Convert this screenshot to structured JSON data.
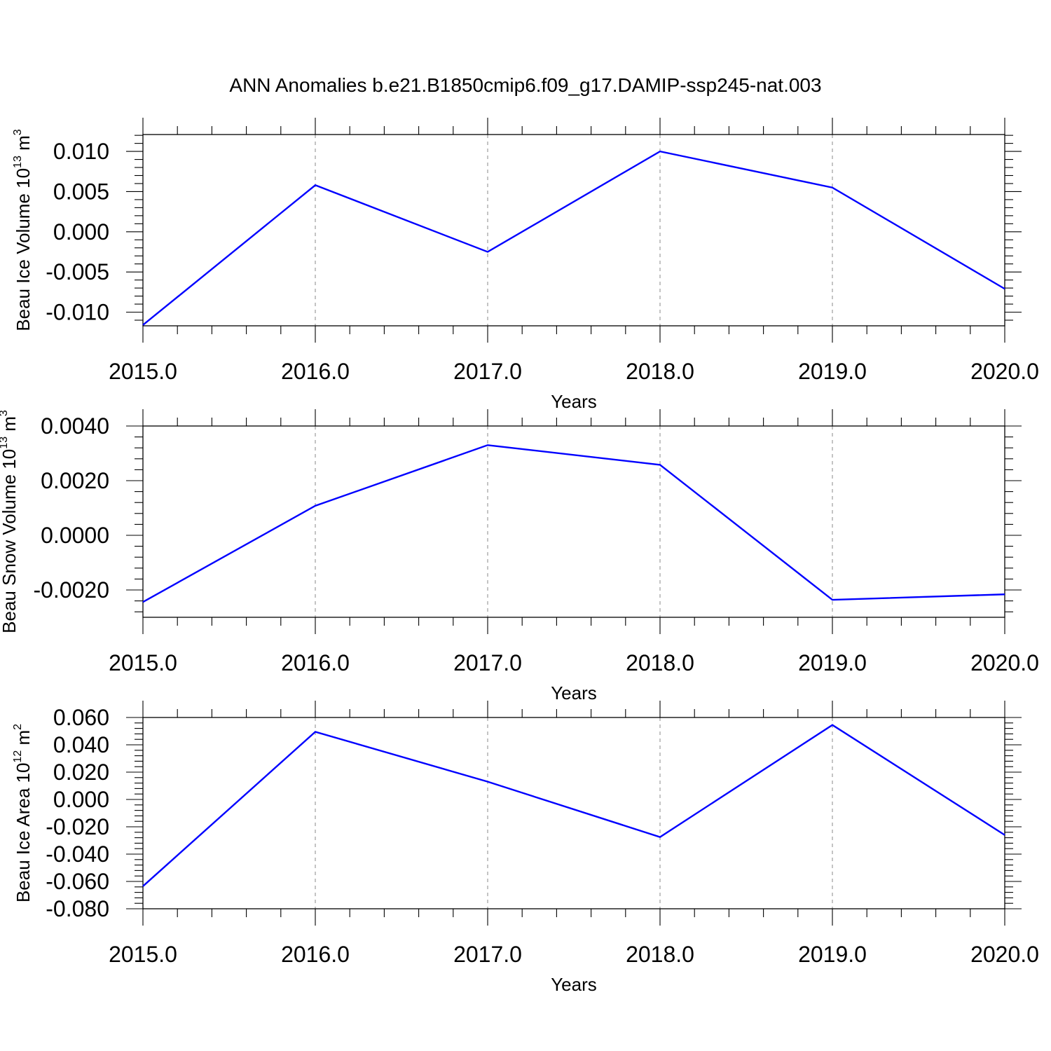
{
  "title": "ANN Anomalies b.e21.B1850cmip6.f09_g17.DAMIP-ssp245-nat.003",
  "chart_data": [
    {
      "type": "line",
      "title": "",
      "xlabel": "Years",
      "ylabel": {
        "prefix": "Beau Ice Volume 10",
        "exp": "13",
        "mid": " m",
        "unit_exp": "3"
      },
      "x": [
        2015,
        2016,
        2017,
        2018,
        2019,
        2020
      ],
      "xlim": [
        2015,
        2020
      ],
      "xticks": [
        "2015.0",
        "2016.0",
        "2017.0",
        "2018.0",
        "2019.0",
        "2020.0"
      ],
      "ylim": [
        -0.0117,
        0.0121
      ],
      "yticks": [
        -0.01,
        -0.005,
        0.0,
        0.005,
        0.01
      ],
      "ytick_labels": [
        "-0.010",
        "-0.005",
        "0.000",
        "0.005",
        "0.010"
      ],
      "grid": "vertical dashed at major x ticks",
      "series": [
        {
          "color": "#0000ff",
          "values": [
            -0.0116,
            0.0058,
            -0.0025,
            0.01,
            0.0055,
            -0.0071
          ]
        }
      ]
    },
    {
      "type": "line",
      "title": "",
      "xlabel": "Years",
      "ylabel": {
        "prefix": "Beau Snow Volume 10",
        "exp": "13",
        "mid": " m",
        "unit_exp": "3"
      },
      "x": [
        2015,
        2016,
        2017,
        2018,
        2019,
        2020
      ],
      "xlim": [
        2015,
        2020
      ],
      "xticks": [
        "2015.0",
        "2016.0",
        "2017.0",
        "2018.0",
        "2019.0",
        "2020.0"
      ],
      "ylim": [
        -0.003,
        0.004
      ],
      "yticks": [
        -0.002,
        0.0,
        0.002,
        0.004
      ],
      "ytick_labels": [
        "-0.0020",
        "0.0000",
        "0.0020",
        "0.0040"
      ],
      "grid": "vertical dashed at major x ticks",
      "series": [
        {
          "color": "#0000ff",
          "values": [
            -0.00244,
            0.00108,
            0.0033,
            0.00258,
            -0.00236,
            -0.00216
          ]
        }
      ]
    },
    {
      "type": "line",
      "title": "",
      "xlabel": "Years",
      "ylabel": {
        "prefix": "Beau Ice Area 10",
        "exp": "12",
        "mid": " m",
        "unit_exp": "2"
      },
      "x": [
        2015,
        2016,
        2017,
        2018,
        2019,
        2020
      ],
      "xlim": [
        2015,
        2020
      ],
      "xticks": [
        "2015.0",
        "2016.0",
        "2017.0",
        "2018.0",
        "2019.0",
        "2020.0"
      ],
      "ylim": [
        -0.08,
        0.06
      ],
      "yticks": [
        -0.08,
        -0.06,
        -0.04,
        -0.02,
        0.0,
        0.02,
        0.04,
        0.06
      ],
      "ytick_labels": [
        "-0.080",
        "-0.060",
        "-0.040",
        "-0.020",
        "0.000",
        "0.020",
        "0.040",
        "0.060"
      ],
      "grid": "vertical dashed at major x ticks",
      "series": [
        {
          "color": "#0000ff",
          "values": [
            -0.0635,
            0.0495,
            0.013,
            -0.0275,
            0.0545,
            -0.026
          ]
        }
      ]
    }
  ]
}
